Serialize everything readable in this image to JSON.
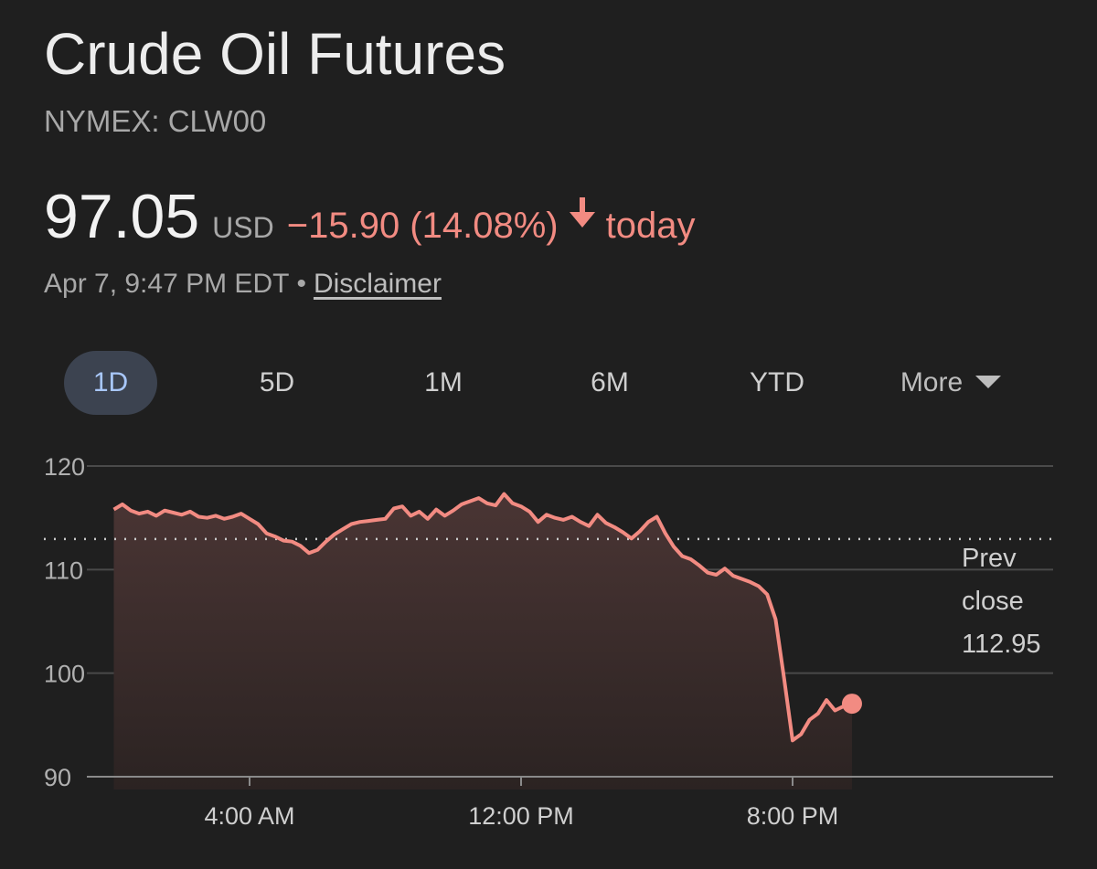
{
  "header": {
    "title": "Crude Oil Futures",
    "exchange_symbol": "NYMEX: CLW00"
  },
  "quote": {
    "price": "97.05",
    "currency": "USD",
    "change": "−15.90 (14.08%)",
    "direction_icon": "arrow-down-icon",
    "period": "today",
    "timestamp": "Apr 7, 9:47 PM EDT",
    "separator": "•",
    "disclaimer": "Disclaimer"
  },
  "tabs": [
    {
      "label": "1D",
      "active": true
    },
    {
      "label": "5D",
      "active": false
    },
    {
      "label": "1M",
      "active": false
    },
    {
      "label": "6M",
      "active": false
    },
    {
      "label": "YTD",
      "active": false
    },
    {
      "label": "More",
      "active": false
    }
  ],
  "colors": {
    "line": "#f28b82",
    "active_tab_bg": "#3c4350",
    "active_tab_text": "#a8c7fa"
  },
  "chart_data": {
    "type": "area",
    "x_unit": "hours since midnight",
    "x_ticks": [
      {
        "value": 4,
        "label": "4:00 AM"
      },
      {
        "value": 12,
        "label": "12:00 PM"
      },
      {
        "value": 20,
        "label": "8:00 PM"
      }
    ],
    "xlim": [
      0,
      28
    ],
    "ylim": [
      90,
      120
    ],
    "y_ticks": [
      90,
      100,
      110,
      120
    ],
    "grid": true,
    "reference_line": {
      "value": 112.95,
      "label_lines": [
        "Prev",
        "close",
        "112.95"
      ]
    },
    "x": [
      0,
      0.25,
      0.5,
      0.75,
      1,
      1.25,
      1.5,
      1.75,
      2,
      2.25,
      2.5,
      2.75,
      3,
      3.25,
      3.5,
      3.75,
      4,
      4.25,
      4.5,
      4.75,
      5,
      5.25,
      5.5,
      5.75,
      6,
      6.25,
      6.5,
      6.75,
      7,
      7.25,
      7.5,
      7.75,
      8,
      8.25,
      8.5,
      8.75,
      9,
      9.25,
      9.5,
      9.75,
      10,
      10.25,
      10.5,
      10.75,
      11,
      11.25,
      11.5,
      11.75,
      12,
      12.25,
      12.5,
      12.75,
      13,
      13.25,
      13.5,
      13.75,
      14,
      14.25,
      14.5,
      14.75,
      15,
      15.25,
      15.5,
      15.75,
      16,
      16.25,
      16.5,
      16.75,
      17,
      17.25,
      17.5,
      17.75,
      18,
      18.25,
      18.5,
      18.75,
      19,
      19.25,
      19.5,
      19.75,
      20,
      20.25,
      20.5,
      20.75,
      21,
      21.25,
      21.5,
      21.75
    ],
    "values": [
      115.8,
      116.3,
      115.7,
      115.4,
      115.6,
      115.2,
      115.7,
      115.5,
      115.3,
      115.6,
      115.1,
      115.0,
      115.2,
      114.9,
      115.1,
      115.4,
      114.9,
      114.4,
      113.5,
      113.2,
      112.8,
      112.7,
      112.3,
      111.6,
      111.9,
      112.7,
      113.4,
      113.9,
      114.4,
      114.6,
      114.7,
      114.8,
      114.9,
      115.9,
      116.1,
      115.2,
      115.6,
      114.9,
      115.8,
      115.2,
      115.7,
      116.3,
      116.6,
      116.9,
      116.4,
      116.2,
      117.3,
      116.4,
      116.1,
      115.6,
      114.6,
      115.3,
      115.0,
      114.8,
      115.1,
      114.6,
      114.2,
      115.3,
      114.5,
      114.1,
      113.6,
      113.0,
      113.7,
      114.6,
      115.1,
      113.5,
      112.2,
      111.3,
      111.0,
      110.4,
      109.7,
      109.5,
      110.1,
      109.4,
      109.1,
      108.8,
      108.4,
      107.6,
      105.2,
      99.5,
      93.5,
      94.1,
      95.5,
      96.1,
      97.4,
      96.4,
      96.8,
      97.05
    ]
  }
}
